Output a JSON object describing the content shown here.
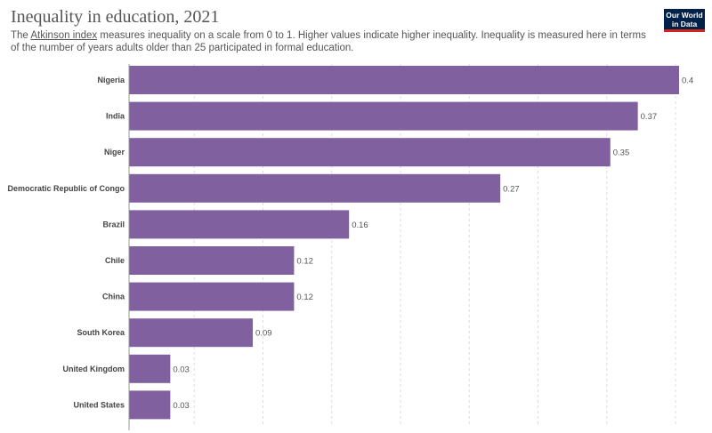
{
  "header": {
    "title": "Inequality in education, 2021",
    "subtitle_link": "Atkinson index",
    "subtitle_prefix": "The ",
    "subtitle_rest": " measures inequality on a scale from 0 to 1. Higher values indicate higher inequality. Inequality is measured here in terms of the number of years adults older than 25 participated in formal education.",
    "logo_line1": "Our World",
    "logo_line2": "in Data"
  },
  "colors": {
    "bar": "#80609e",
    "logo_bg": "#002147",
    "logo_accent": "#ce261e"
  },
  "chart_data": {
    "type": "bar",
    "orientation": "horizontal",
    "categories": [
      "Nigeria",
      "India",
      "Niger",
      "Democratic Republic of Congo",
      "Brazil",
      "Chile",
      "China",
      "South Korea",
      "United Kingdom",
      "United States"
    ],
    "values": [
      0.4,
      0.37,
      0.35,
      0.27,
      0.16,
      0.12,
      0.12,
      0.09,
      0.03,
      0.03
    ],
    "value_labels": [
      "0.4",
      "0.37",
      "0.35",
      "0.27",
      "0.16",
      "0.12",
      "0.12",
      "0.09",
      "0.03",
      "0.03"
    ],
    "xlim": [
      0,
      0.4
    ],
    "grid": true
  }
}
